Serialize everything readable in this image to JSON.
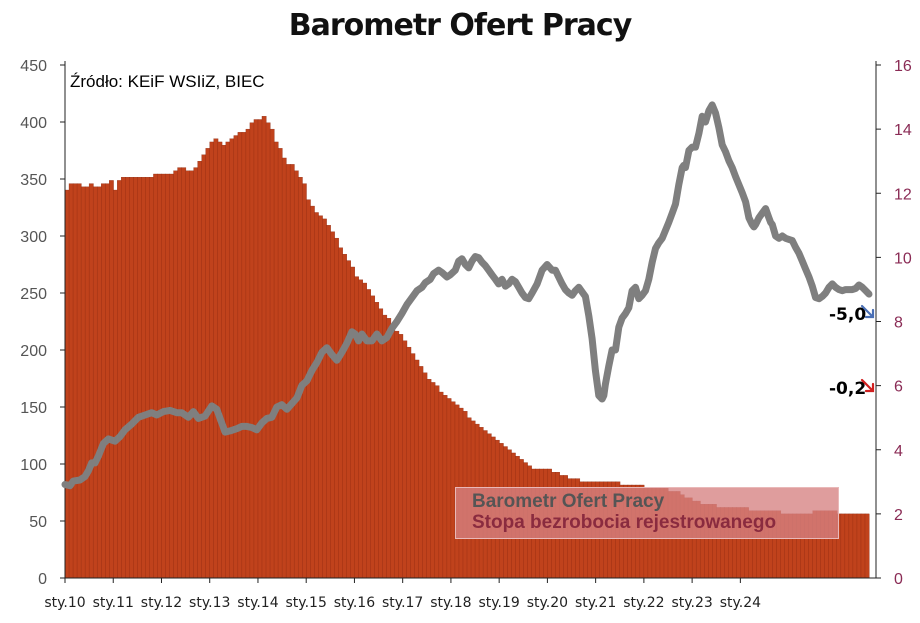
{
  "chart_data": {
    "type": "bar+line",
    "title": "Barometr Ofert Pracy",
    "source_note": "Źródło: KEiF WSIiZ, BIEC",
    "x_ticks": [
      "sty.10",
      "sty.11",
      "sty.12",
      "sty.13",
      "sty.14",
      "sty.15",
      "sty.16",
      "sty.17",
      "sty.18",
      "sty.19",
      "sty.20",
      "sty.21",
      "sty.22",
      "sty.23",
      "sty.24"
    ],
    "y_left": {
      "ticks": [
        "0",
        "50",
        "100",
        "150",
        "200",
        "250",
        "300",
        "350",
        "400",
        "450"
      ],
      "min": 0,
      "max": 450
    },
    "y_right": {
      "ticks": [
        "0",
        "2",
        "4",
        "6",
        "8",
        "10",
        "12",
        "14",
        "16"
      ],
      "min": 0,
      "max": 16
    },
    "series": [
      {
        "name": "Barometr Ofert Pracy",
        "kind": "line",
        "axis": "left",
        "color": "#7f7f7f",
        "points": [
          [
            0,
            82
          ],
          [
            3,
            81
          ],
          [
            5,
            85
          ],
          [
            9,
            86
          ],
          [
            12,
            89
          ],
          [
            14,
            94
          ],
          [
            16,
            101
          ],
          [
            18,
            101
          ],
          [
            20,
            107
          ],
          [
            23,
            118
          ],
          [
            26,
            122
          ],
          [
            30,
            120
          ],
          [
            33,
            124
          ],
          [
            36,
            130
          ],
          [
            40,
            135
          ],
          [
            44,
            141
          ],
          [
            48,
            143
          ],
          [
            52,
            145
          ],
          [
            55,
            143
          ],
          [
            59,
            146
          ],
          [
            63,
            147
          ],
          [
            67,
            145
          ],
          [
            70,
            145
          ],
          [
            74,
            141
          ],
          [
            77,
            146
          ],
          [
            80,
            140
          ],
          [
            84,
            142
          ],
          [
            88,
            151
          ],
          [
            91,
            148
          ],
          [
            93,
            140
          ],
          [
            96,
            128
          ],
          [
            99,
            129
          ],
          [
            103,
            131
          ],
          [
            106,
            133
          ],
          [
            109,
            133
          ],
          [
            112,
            132
          ],
          [
            115,
            130
          ],
          [
            118,
            136
          ],
          [
            121,
            140
          ],
          [
            124,
            141
          ],
          [
            127,
            150
          ],
          [
            130,
            152
          ],
          [
            133,
            148
          ],
          [
            136,
            153
          ],
          [
            139,
            158
          ],
          [
            142,
            169
          ],
          [
            145,
            173
          ],
          [
            148,
            182
          ],
          [
            151,
            189
          ],
          [
            154,
            198
          ],
          [
            157,
            202
          ],
          [
            160,
            196
          ],
          [
            163,
            191
          ],
          [
            166,
            198
          ],
          [
            169,
            206
          ],
          [
            172,
            216
          ],
          [
            174,
            214
          ],
          [
            176,
            208
          ],
          [
            178,
            214
          ],
          [
            181,
            208
          ],
          [
            184,
            208
          ],
          [
            187,
            214
          ],
          [
            190,
            208
          ],
          [
            193,
            211
          ],
          [
            196,
            219
          ],
          [
            199,
            225
          ],
          [
            202,
            232
          ],
          [
            205,
            240
          ],
          [
            208,
            246
          ],
          [
            211,
            252
          ],
          [
            214,
            255
          ],
          [
            216,
            259
          ],
          [
            219,
            262
          ],
          [
            221,
            267
          ],
          [
            224,
            270
          ],
          [
            226,
            268
          ],
          [
            229,
            264
          ],
          [
            231,
            266
          ],
          [
            234,
            270
          ],
          [
            236,
            278
          ],
          [
            238,
            280
          ],
          [
            240,
            275
          ],
          [
            242,
            272
          ],
          [
            244,
            278
          ],
          [
            246,
            282
          ],
          [
            248,
            281
          ],
          [
            250,
            277
          ],
          [
            252,
            274
          ],
          [
            254,
            270
          ],
          [
            256,
            266
          ],
          [
            258,
            262
          ],
          [
            260,
            258
          ],
          [
            262,
            262
          ],
          [
            264,
            256
          ],
          [
            266,
            258
          ],
          [
            268,
            262
          ],
          [
            270,
            260
          ],
          [
            272,
            255
          ],
          [
            274,
            250
          ],
          [
            276,
            246
          ],
          [
            278,
            245
          ],
          [
            280,
            250
          ],
          [
            283,
            258
          ],
          [
            286,
            270
          ],
          [
            289,
            275
          ],
          [
            292,
            270
          ],
          [
            294,
            270
          ],
          [
            296,
            264
          ],
          [
            298,
            258
          ],
          [
            300,
            253
          ],
          [
            302,
            250
          ],
          [
            304,
            248
          ],
          [
            306,
            252
          ],
          [
            308,
            255
          ],
          [
            310,
            251
          ],
          [
            312,
            247
          ],
          [
            314,
            230
          ],
          [
            316,
            210
          ],
          [
            318,
            182
          ],
          [
            320,
            160
          ],
          [
            322,
            157
          ],
          [
            323,
            160
          ],
          [
            324,
            170
          ],
          [
            326,
            186
          ],
          [
            328,
            200
          ],
          [
            330,
            200
          ],
          [
            332,
            220
          ],
          [
            334,
            228
          ],
          [
            336,
            232
          ],
          [
            338,
            237
          ],
          [
            340,
            252
          ],
          [
            342,
            255
          ],
          [
            344,
            245
          ],
          [
            346,
            248
          ],
          [
            348,
            252
          ],
          [
            350,
            262
          ],
          [
            352,
            277
          ],
          [
            354,
            289
          ],
          [
            356,
            294
          ],
          [
            358,
            298
          ],
          [
            360,
            305
          ],
          [
            362,
            312
          ],
          [
            364,
            320
          ],
          [
            366,
            328
          ],
          [
            368,
            345
          ],
          [
            370,
            360
          ],
          [
            371,
            362
          ],
          [
            372,
            360
          ],
          [
            374,
            375
          ],
          [
            376,
            378
          ],
          [
            378,
            378
          ],
          [
            380,
            390
          ],
          [
            382,
            405
          ],
          [
            384,
            400
          ],
          [
            386,
            410
          ],
          [
            388,
            415
          ],
          [
            390,
            408
          ],
          [
            392,
            395
          ],
          [
            394,
            380
          ],
          [
            396,
            374
          ],
          [
            398,
            366
          ],
          [
            400,
            360
          ],
          [
            402,
            352
          ],
          [
            404,
            345
          ],
          [
            406,
            338
          ],
          [
            408,
            330
          ],
          [
            410,
            316
          ],
          [
            412,
            310
          ],
          [
            413,
            308
          ],
          [
            414,
            310
          ],
          [
            416,
            316
          ],
          [
            418,
            320
          ],
          [
            420,
            324
          ],
          [
            422,
            316
          ],
          [
            423,
            312
          ],
          [
            424,
            310
          ],
          [
            426,
            300
          ],
          [
            428,
            298
          ],
          [
            430,
            300
          ],
          [
            432,
            298
          ],
          [
            434,
            297
          ],
          [
            436,
            296
          ],
          [
            438,
            290
          ],
          [
            440,
            285
          ],
          [
            442,
            278
          ],
          [
            444,
            271
          ],
          [
            446,
            264
          ],
          [
            448,
            256
          ],
          [
            450,
            246
          ],
          [
            452,
            245
          ],
          [
            454,
            247
          ],
          [
            456,
            250
          ],
          [
            458,
            255
          ],
          [
            460,
            258
          ],
          [
            462,
            255
          ],
          [
            464,
            253
          ],
          [
            466,
            252
          ],
          [
            468,
            253
          ],
          [
            470,
            253
          ],
          [
            472,
            253
          ],
          [
            474,
            254
          ],
          [
            476,
            257
          ],
          [
            478,
            255
          ],
          [
            480,
            252
          ],
          [
            482,
            249
          ]
        ]
      },
      {
        "name": "Stopa bezrobocia rejestrowanego",
        "kind": "bars",
        "axis": "right",
        "color": "#c0421c",
        "values": [
          12.1,
          12.3,
          12.3,
          12.3,
          12.2,
          12.2,
          12.3,
          12.2,
          12.2,
          12.3,
          12.3,
          12.4,
          12.1,
          12.4,
          12.5,
          12.5,
          12.5,
          12.5,
          12.5,
          12.5,
          12.5,
          12.5,
          12.6,
          12.6,
          12.6,
          12.6,
          12.6,
          12.7,
          12.8,
          12.8,
          12.7,
          12.7,
          12.8,
          13.0,
          13.2,
          13.4,
          13.6,
          13.7,
          13.6,
          13.5,
          13.6,
          13.7,
          13.8,
          13.9,
          13.9,
          14.0,
          14.2,
          14.3,
          14.3,
          14.4,
          14.2,
          14.0,
          13.6,
          13.4,
          13.1,
          12.9,
          12.9,
          12.7,
          12.5,
          12.3,
          11.8,
          11.6,
          11.4,
          11.3,
          11.2,
          11.0,
          10.8,
          10.6,
          10.3,
          10.1,
          9.9,
          9.7,
          9.4,
          9.3,
          9.2,
          9.0,
          8.8,
          8.6,
          8.4,
          8.2,
          8.1,
          7.9,
          7.7,
          7.6,
          7.4,
          7.2,
          7.0,
          6.8,
          6.6,
          6.4,
          6.2,
          6.1,
          6.0,
          5.8,
          5.7,
          5.6,
          5.5,
          5.4,
          5.3,
          5.2,
          5.0,
          4.9,
          4.8,
          4.7,
          4.6,
          4.5,
          4.4,
          4.3,
          4.2,
          4.1,
          4.0,
          3.9,
          3.8,
          3.7,
          3.6,
          3.5,
          3.4,
          3.4,
          3.4,
          3.4,
          3.4,
          3.3,
          3.3,
          3.2,
          3.2,
          3.1,
          3.1,
          3.1,
          3.0,
          3.0,
          3.0,
          3.0,
          3.0,
          3.0,
          3.0,
          3.0,
          3.0,
          3.0,
          2.9,
          2.9,
          2.9,
          2.9,
          2.9,
          2.9,
          2.8,
          2.8,
          2.8,
          2.8,
          2.8,
          2.8,
          2.7,
          2.7,
          2.7,
          2.6,
          2.5,
          2.5,
          2.4,
          2.4,
          2.3,
          2.3,
          2.3,
          2.3,
          2.2,
          2.2,
          2.2,
          2.2,
          2.2,
          2.2,
          2.2,
          2.2,
          2.1,
          2.1,
          2.1,
          2.1,
          2.1,
          2.1,
          2.1,
          2.1,
          2.0,
          2.0,
          2.0,
          2.0,
          2.0,
          2.0,
          2.0,
          2.0,
          2.1,
          2.1,
          2.1,
          2.1,
          2.1,
          2.1,
          2.0,
          2.0,
          2.0,
          2.0,
          2.0,
          2.0,
          2.0,
          2.0
        ]
      }
    ],
    "end_labels": [
      {
        "text": "-5,0",
        "arrow": "down-blue",
        "color": "#4a6fb5"
      },
      {
        "text": "-0,2",
        "arrow": "down-red",
        "color": "#d01f1f"
      }
    ]
  }
}
